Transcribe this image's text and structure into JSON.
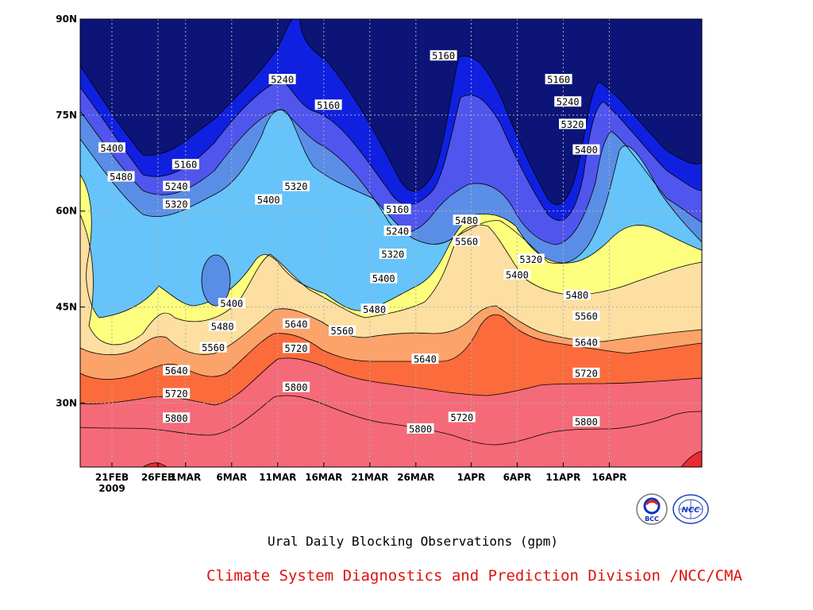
{
  "chart_data": {
    "type": "contour",
    "title": "Ural Daily Blocking Observations (gpm)",
    "xlabel": "",
    "ylabel": "",
    "x_ticks": [
      "21FEB",
      "26FEB",
      "1MAR",
      "6MAR",
      "11MAR",
      "16MAR",
      "21MAR",
      "26MAR",
      "1APR",
      "6APR",
      "11APR",
      "16APR"
    ],
    "x_year_label": "2009",
    "y_ticks": [
      "30N",
      "45N",
      "60N",
      "75N",
      "90N"
    ],
    "ylim": [
      20,
      90
    ],
    "xlim_days": [
      0,
      58
    ],
    "contour_levels": [
      5160,
      5240,
      5320,
      5400,
      5480,
      5560,
      5640,
      5720,
      5800
    ],
    "level_colors": [
      "#0c1577",
      "#1020e0",
      "#5055ee",
      "#5a8ee6",
      "#66c4fa",
      "#fefe7e",
      "#fcdfa1",
      "#fca36a",
      "#fc6b3c",
      "#f56a78",
      "#ea2a34"
    ],
    "grid": true,
    "contour_labels": [
      {
        "text": "5160",
        "day": 8,
        "lat": 67.2
      },
      {
        "text": "5240",
        "day": 7,
        "lat": 63.8
      },
      {
        "text": "5320",
        "day": 7,
        "lat": 61.0
      },
      {
        "text": "5400",
        "day": 0,
        "lat": 69.8
      },
      {
        "text": "5480",
        "day": 1,
        "lat": 65.3
      },
      {
        "text": "5240",
        "day": 18.5,
        "lat": 80.5
      },
      {
        "text": "5160",
        "day": 23.5,
        "lat": 76.5
      },
      {
        "text": "5320",
        "day": 20,
        "lat": 63.8
      },
      {
        "text": "5400",
        "day": 17,
        "lat": 61.7
      },
      {
        "text": "5400",
        "day": 13,
        "lat": 45.5
      },
      {
        "text": "5480",
        "day": 12,
        "lat": 41.9
      },
      {
        "text": "5560",
        "day": 11,
        "lat": 38.6
      },
      {
        "text": "5640",
        "day": 20,
        "lat": 42.3
      },
      {
        "text": "5720",
        "day": 20,
        "lat": 38.5
      },
      {
        "text": "5800",
        "day": 20,
        "lat": 32.4
      },
      {
        "text": "5640",
        "day": 7,
        "lat": 35.0
      },
      {
        "text": "5720",
        "day": 7,
        "lat": 31.4
      },
      {
        "text": "5800",
        "day": 7,
        "lat": 27.6
      },
      {
        "text": "5560",
        "day": 25,
        "lat": 41.2
      },
      {
        "text": "5480",
        "day": 28.5,
        "lat": 44.6
      },
      {
        "text": "5400",
        "day": 29.5,
        "lat": 49.4
      },
      {
        "text": "5320",
        "day": 30.5,
        "lat": 53.2
      },
      {
        "text": "5240",
        "day": 31,
        "lat": 56.8
      },
      {
        "text": "5160",
        "day": 31,
        "lat": 60.2
      },
      {
        "text": "5640",
        "day": 34,
        "lat": 36.8
      },
      {
        "text": "5800",
        "day": 33.5,
        "lat": 25.9
      },
      {
        "text": "5720",
        "day": 38,
        "lat": 27.7
      },
      {
        "text": "5160",
        "day": 36,
        "lat": 84.2
      },
      {
        "text": "5480",
        "day": 38.5,
        "lat": 58.5
      },
      {
        "text": "5560",
        "day": 38.5,
        "lat": 55.2
      },
      {
        "text": "5320",
        "day": 45.5,
        "lat": 52.4
      },
      {
        "text": "5400",
        "day": 44,
        "lat": 50.0
      },
      {
        "text": "5160",
        "day": 48.5,
        "lat": 80.5
      },
      {
        "text": "5240",
        "day": 49.5,
        "lat": 77.0
      },
      {
        "text": "5320",
        "day": 50,
        "lat": 73.5
      },
      {
        "text": "5400",
        "day": 51.5,
        "lat": 69.5
      },
      {
        "text": "5480",
        "day": 50.5,
        "lat": 46.8
      },
      {
        "text": "5560",
        "day": 51.5,
        "lat": 43.5
      },
      {
        "text": "5640",
        "day": 51.5,
        "lat": 39.4
      },
      {
        "text": "5720",
        "day": 51.5,
        "lat": 34.6
      },
      {
        "text": "5800",
        "day": 51.5,
        "lat": 27.0
      }
    ]
  },
  "footer": {
    "caption": "Ural Daily Blocking Observations (gpm)",
    "credit": "Climate System Diagnostics and Prediction Division /NCC/CMA",
    "logo_bcc": "BCC",
    "logo_ncc": "NCC"
  }
}
